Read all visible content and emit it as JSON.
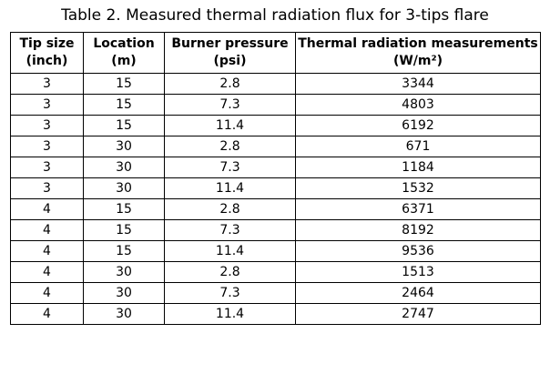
{
  "caption": "Table 2. Measured thermal radiation flux for 3-tips flare",
  "table": {
    "headers": [
      {
        "line1": "Tip size",
        "line2": "(inch)"
      },
      {
        "line1": "Location",
        "line2": "(m)"
      },
      {
        "line1": "Burner pressure",
        "line2": "(psi)"
      },
      {
        "line1": "Thermal radiation measurements",
        "line2": "(W/m²)"
      }
    ],
    "rows": [
      [
        "3",
        "15",
        "2.8",
        "3344"
      ],
      [
        "3",
        "15",
        "7.3",
        "4803"
      ],
      [
        "3",
        "15",
        "11.4",
        "6192"
      ],
      [
        "3",
        "30",
        "2.8",
        "671"
      ],
      [
        "3",
        "30",
        "7.3",
        "1184"
      ],
      [
        "3",
        "30",
        "11.4",
        "1532"
      ],
      [
        "4",
        "15",
        "2.8",
        "6371"
      ],
      [
        "4",
        "15",
        "7.3",
        "8192"
      ],
      [
        "4",
        "15",
        "11.4",
        "9536"
      ],
      [
        "4",
        "30",
        "2.8",
        "1513"
      ],
      [
        "4",
        "30",
        "7.3",
        "2464"
      ],
      [
        "4",
        "30",
        "11.4",
        "2747"
      ]
    ]
  }
}
